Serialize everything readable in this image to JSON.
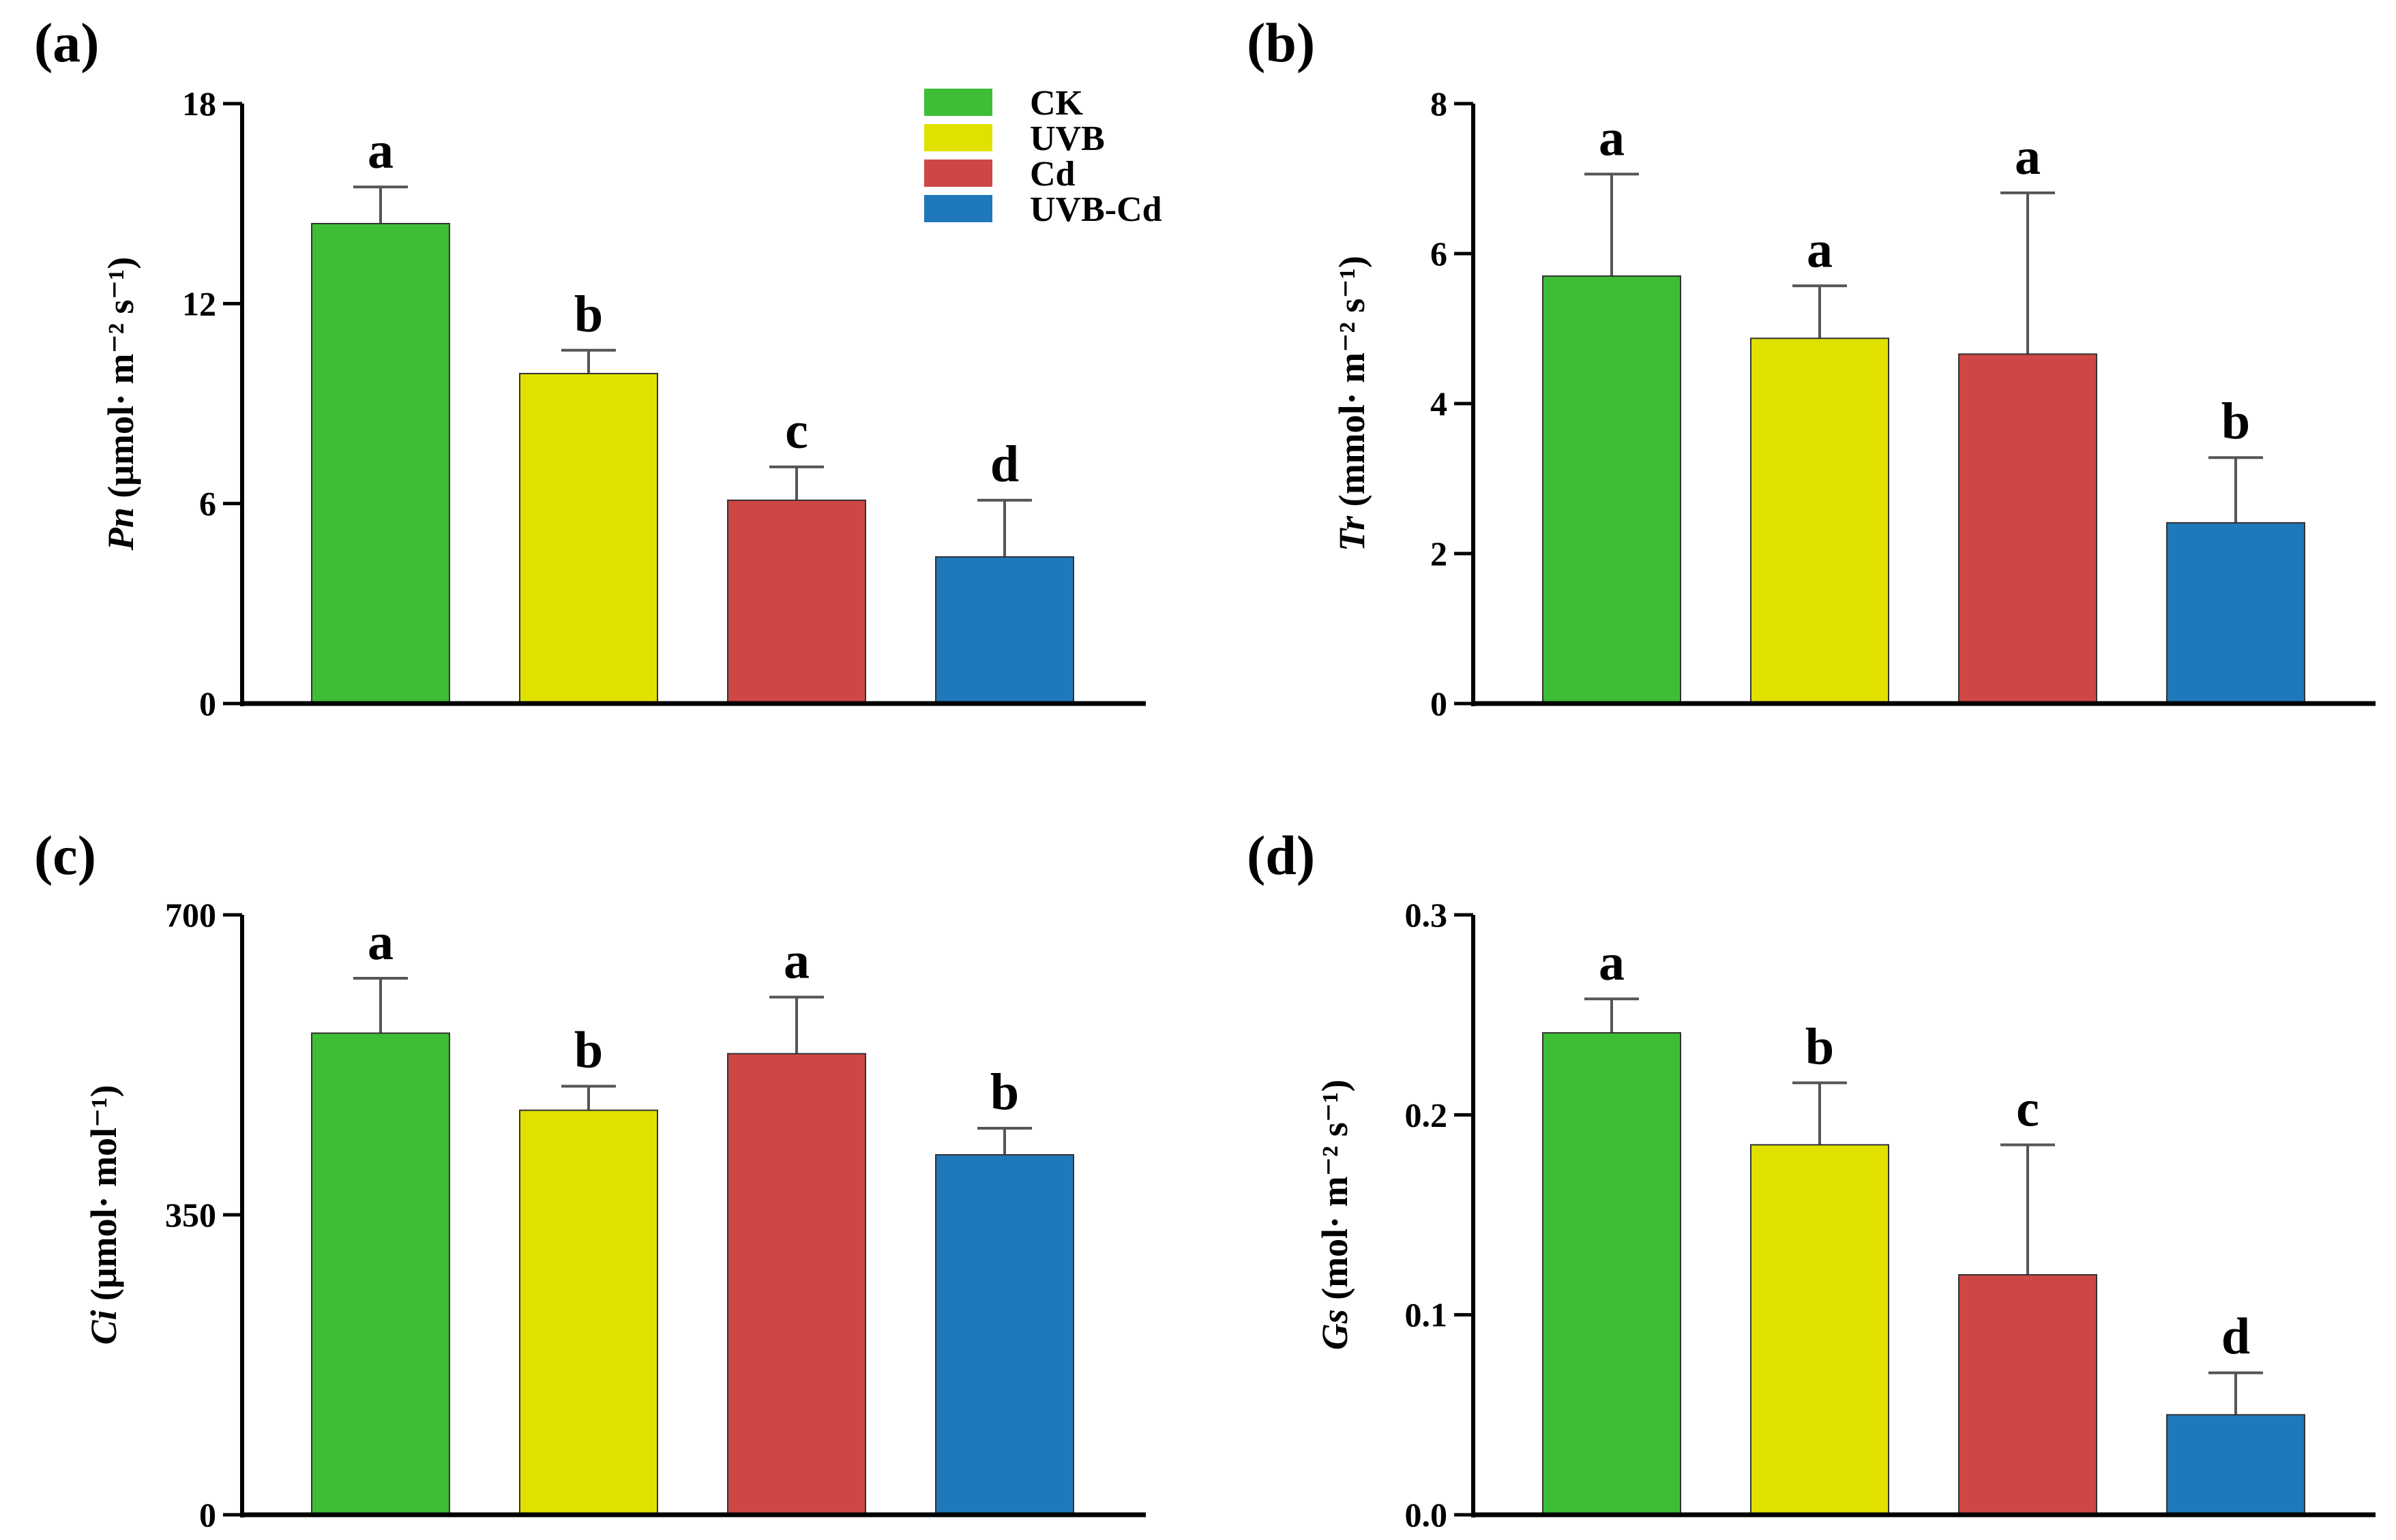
{
  "colors": {
    "CK": "#3dbe36",
    "UVB": "#e1e100",
    "Cd": "#cf4744",
    "UVB-Cd": "#1f78b9",
    "axis": "#000000",
    "error": "#555555"
  },
  "legend": [
    "CK",
    "UVB",
    "Cd",
    "UVB-Cd"
  ],
  "chart_data": [
    {
      "type": "bar",
      "panel": "(a)",
      "categories": [
        "CK",
        "UVB",
        "Cd",
        "UVB-Cd"
      ],
      "values": [
        14.4,
        9.9,
        6.1,
        4.4
      ],
      "errors": [
        1.1,
        0.7,
        1.0,
        1.7
      ],
      "significance": [
        "a",
        "b",
        "c",
        "d"
      ],
      "ylabel_var": "Pn",
      "ylabel_unit": " (μmol· m⁻² s⁻¹)",
      "yticks": [
        "0",
        "6",
        "12",
        "18"
      ],
      "ylim": [
        0,
        18
      ]
    },
    {
      "type": "bar",
      "panel": "(b)",
      "categories": [
        "CK",
        "UVB",
        "Cd",
        "UVB-Cd"
      ],
      "values": [
        5.7,
        4.87,
        4.66,
        2.41
      ],
      "errors": [
        1.36,
        0.7,
        2.15,
        0.87
      ],
      "significance": [
        "a",
        "a",
        "a",
        "b"
      ],
      "ylabel_var": "Tr",
      "ylabel_unit": " (mmol· m⁻² s⁻¹)",
      "yticks": [
        "0",
        "2",
        "4",
        "6",
        "8"
      ],
      "ylim": [
        0,
        8
      ]
    },
    {
      "type": "bar",
      "panel": "(c)",
      "categories": [
        "CK",
        "UVB",
        "Cd",
        "UVB-Cd"
      ],
      "values": [
        562,
        472,
        538,
        420
      ],
      "errors": [
        64,
        28,
        66,
        31
      ],
      "significance": [
        "a",
        "b",
        "a",
        "b"
      ],
      "ylabel_var": "Ci",
      "ylabel_unit": " (μmol· mol⁻¹)",
      "yticks": [
        "0",
        "350",
        "700"
      ],
      "ylim": [
        0,
        700
      ]
    },
    {
      "type": "bar",
      "panel": "(d)",
      "categories": [
        "CK",
        "UVB",
        "Cd",
        "UVB-Cd"
      ],
      "values": [
        0.241,
        0.185,
        0.12,
        0.05
      ],
      "errors": [
        0.017,
        0.031,
        0.065,
        0.021
      ],
      "significance": [
        "a",
        "b",
        "c",
        "d"
      ],
      "ylabel_var": "Gs",
      "ylabel_unit": " (mol· m⁻² s⁻¹)",
      "yticks": [
        "0.0",
        "0.1",
        "0.2",
        "0.3"
      ],
      "ylim": [
        0,
        0.3
      ]
    }
  ]
}
